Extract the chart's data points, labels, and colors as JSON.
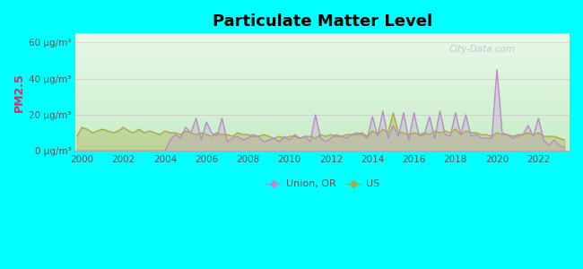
{
  "title": "Particulate Matter Level",
  "ylabel": "PM2.5",
  "ylim": [
    0,
    65
  ],
  "yticks": [
    0,
    20,
    40,
    60
  ],
  "ytick_labels": [
    "0 μg/m³",
    "20 μg/m³",
    "40 μg/m³",
    "60 μg/m³"
  ],
  "xticks": [
    2000,
    2002,
    2004,
    2006,
    2008,
    2010,
    2012,
    2014,
    2016,
    2018,
    2020,
    2022
  ],
  "xlim": [
    1999.7,
    2023.5
  ],
  "background_color": "#00ffff",
  "union_color": "#bb88cc",
  "us_color": "#aaaa44",
  "union_fill_color": "#ddbbee",
  "us_fill_color": "#dddd99",
  "title_fontsize": 13,
  "legend_labels": [
    "Union, OR",
    "US"
  ],
  "watermark": "City-Data.com",
  "union_or_years": [
    1999.75,
    2000.0,
    2000.25,
    2000.5,
    2000.75,
    2001.0,
    2001.25,
    2001.5,
    2001.75,
    2002.0,
    2002.25,
    2002.5,
    2002.75,
    2003.0,
    2003.25,
    2003.5,
    2003.75,
    2004.0,
    2004.25,
    2004.5,
    2004.75,
    2005.0,
    2005.25,
    2005.5,
    2005.75,
    2006.0,
    2006.25,
    2006.5,
    2006.75,
    2007.0,
    2007.25,
    2007.5,
    2007.75,
    2008.0,
    2008.25,
    2008.5,
    2008.75,
    2009.0,
    2009.25,
    2009.5,
    2009.75,
    2010.0,
    2010.25,
    2010.5,
    2010.75,
    2011.0,
    2011.25,
    2011.5,
    2011.75,
    2012.0,
    2012.25,
    2012.5,
    2012.75,
    2013.0,
    2013.25,
    2013.5,
    2013.75,
    2014.0,
    2014.25,
    2014.5,
    2014.75,
    2015.0,
    2015.25,
    2015.5,
    2015.75,
    2016.0,
    2016.25,
    2016.5,
    2016.75,
    2017.0,
    2017.25,
    2017.5,
    2017.75,
    2018.0,
    2018.25,
    2018.5,
    2018.75,
    2019.0,
    2019.25,
    2019.5,
    2019.75,
    2020.0,
    2020.25,
    2020.5,
    2020.75,
    2021.0,
    2021.25,
    2021.5,
    2021.75,
    2022.0,
    2022.25,
    2022.5,
    2022.75,
    2023.0,
    2023.25
  ],
  "union_or_values": [
    0,
    0,
    0,
    0,
    0,
    0,
    0,
    0,
    0,
    0,
    0,
    0,
    0,
    0,
    0,
    0,
    0,
    0,
    6,
    9,
    7,
    13,
    10,
    18,
    6,
    16,
    10,
    8,
    18,
    5,
    7,
    8,
    6,
    7,
    9,
    8,
    5,
    6,
    7,
    5,
    8,
    6,
    9,
    7,
    8,
    5,
    20,
    7,
    5,
    7,
    9,
    8,
    7,
    9,
    10,
    9,
    7,
    19,
    8,
    22,
    7,
    14,
    8,
    21,
    6,
    21,
    8,
    9,
    19,
    7,
    22,
    9,
    8,
    21,
    9,
    20,
    8,
    9,
    7,
    7,
    7,
    45,
    10,
    9,
    7,
    8,
    9,
    14,
    8,
    18,
    6,
    3,
    6,
    3,
    2
  ],
  "us_years": [
    1999.75,
    2000.0,
    2000.25,
    2000.5,
    2000.75,
    2001.0,
    2001.25,
    2001.5,
    2001.75,
    2002.0,
    2002.25,
    2002.5,
    2002.75,
    2003.0,
    2003.25,
    2003.5,
    2003.75,
    2004.0,
    2004.25,
    2004.5,
    2004.75,
    2005.0,
    2005.25,
    2005.5,
    2005.75,
    2006.0,
    2006.25,
    2006.5,
    2006.75,
    2007.0,
    2007.25,
    2007.5,
    2007.75,
    2008.0,
    2008.25,
    2008.5,
    2008.75,
    2009.0,
    2009.25,
    2009.5,
    2009.75,
    2010.0,
    2010.25,
    2010.5,
    2010.75,
    2011.0,
    2011.25,
    2011.5,
    2011.75,
    2012.0,
    2012.25,
    2012.5,
    2012.75,
    2013.0,
    2013.25,
    2013.5,
    2013.75,
    2014.0,
    2014.25,
    2014.5,
    2014.75,
    2015.0,
    2015.25,
    2015.5,
    2015.75,
    2016.0,
    2016.25,
    2016.5,
    2016.75,
    2017.0,
    2017.25,
    2017.5,
    2017.75,
    2018.0,
    2018.25,
    2018.5,
    2018.75,
    2019.0,
    2019.25,
    2019.5,
    2019.75,
    2020.0,
    2020.25,
    2020.5,
    2020.75,
    2021.0,
    2021.25,
    2021.5,
    2021.75,
    2022.0,
    2022.25,
    2022.5,
    2022.75,
    2023.0,
    2023.25
  ],
  "us_values": [
    8,
    13,
    12,
    10,
    11,
    12,
    11,
    10,
    11,
    13,
    11,
    10,
    12,
    10,
    11,
    10,
    9,
    11,
    10,
    10,
    9,
    11,
    10,
    9,
    10,
    9,
    8,
    10,
    9,
    9,
    8,
    10,
    9,
    9,
    8,
    8,
    9,
    8,
    7,
    8,
    7,
    8,
    8,
    7,
    8,
    8,
    7,
    9,
    8,
    9,
    8,
    8,
    9,
    9,
    9,
    10,
    8,
    11,
    9,
    12,
    10,
    21,
    10,
    10,
    9,
    10,
    9,
    10,
    9,
    11,
    10,
    11,
    10,
    12,
    9,
    11,
    10,
    10,
    9,
    9,
    8,
    10,
    9,
    9,
    8,
    9,
    9,
    10,
    9,
    10,
    8,
    8,
    8,
    7,
    6
  ]
}
